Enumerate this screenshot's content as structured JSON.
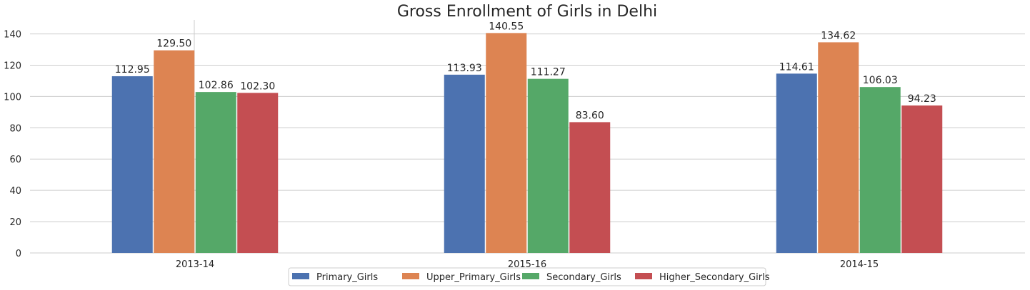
{
  "chart_data": {
    "type": "bar",
    "title": "Gross Enrollment of Girls in Delhi",
    "xlabel": "",
    "ylabel": "",
    "categories": [
      "2013-14",
      "2015-16",
      "2014-15"
    ],
    "series": [
      {
        "name": "Primary_Girls",
        "color": "#4c72b0",
        "values": [
          112.95,
          113.93,
          114.61
        ]
      },
      {
        "name": "Upper_Primary_Girls",
        "color": "#dd8452",
        "values": [
          129.5,
          140.55,
          134.62
        ]
      },
      {
        "name": "Secondary_Girls",
        "color": "#55a868",
        "values": [
          102.86,
          111.27,
          106.03
        ]
      },
      {
        "name": "Higher_Secondary_Girls",
        "color": "#c44e52",
        "values": [
          102.3,
          83.6,
          94.23
        ]
      }
    ],
    "ylim": [
      0,
      148
    ],
    "yticks": [
      0,
      20,
      40,
      60,
      80,
      100,
      120,
      140
    ],
    "grid": "horizontal",
    "legend": "bottom-center",
    "value_decimals": 2
  }
}
